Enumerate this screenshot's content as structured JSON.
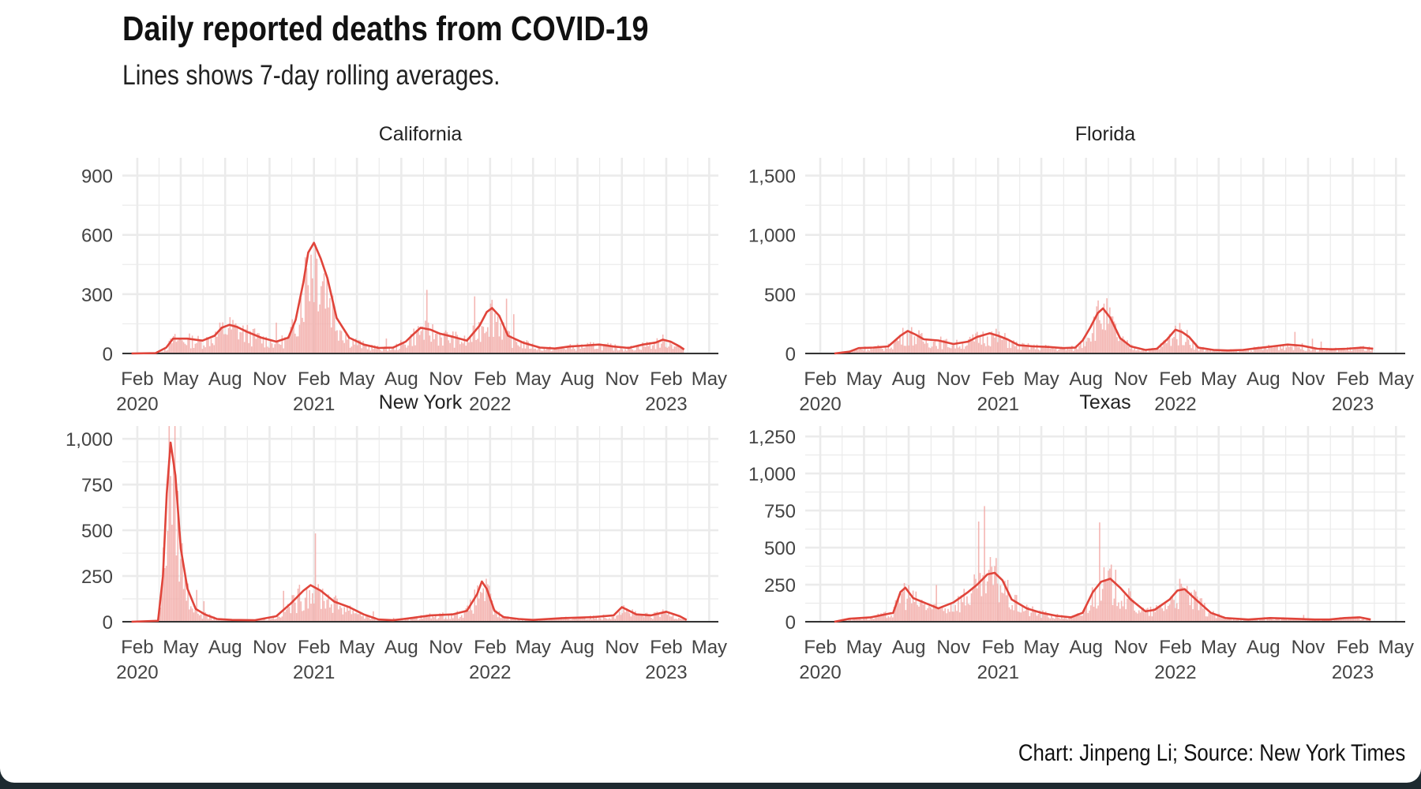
{
  "title": "Daily reported deaths from COVID-19",
  "subtitle": "Lines shows 7-day rolling averages.",
  "caption": "Chart: Jinpeng Li; Source: New York Times",
  "colors": {
    "line": "#e0443a",
    "bars": "#f2a9a6",
    "grid": "#ebebeb",
    "axis": "#333333",
    "text": "#444444"
  },
  "chart_data": [
    {
      "panel": "California",
      "type": "line",
      "ylim": [
        0,
        990
      ],
      "yticks": [
        0,
        300,
        600,
        900
      ],
      "ytick_labels": [
        "0",
        "300",
        "600",
        "900"
      ],
      "xlim": [
        "2020-01-01",
        "2023-05-20"
      ],
      "xticks": [
        "2020-02-01",
        "2020-05-01",
        "2020-08-01",
        "2020-11-01",
        "2021-02-01",
        "2021-05-01",
        "2021-08-01",
        "2021-11-01",
        "2022-02-01",
        "2022-05-01",
        "2022-08-01",
        "2022-11-01",
        "2023-02-01",
        "2023-05-01"
      ],
      "xtick_labels": [
        [
          "Feb",
          "2020"
        ],
        [
          "May",
          ""
        ],
        [
          "Aug",
          ""
        ],
        [
          "Nov",
          ""
        ],
        [
          "Feb",
          "2021"
        ],
        [
          "May",
          ""
        ],
        [
          "Aug",
          ""
        ],
        [
          "Nov",
          ""
        ],
        [
          "Feb",
          "2022"
        ],
        [
          "May",
          ""
        ],
        [
          "Aug",
          ""
        ],
        [
          "Nov",
          ""
        ],
        [
          "Feb",
          "2023"
        ],
        [
          "May",
          ""
        ]
      ],
      "series": [
        {
          "x": [
            "2020-01-20",
            "2020-03-10",
            "2020-04-01",
            "2020-04-15",
            "2020-05-15",
            "2020-06-15",
            "2020-07-10",
            "2020-07-25",
            "2020-08-10",
            "2020-08-25",
            "2020-09-15",
            "2020-10-15",
            "2020-11-15",
            "2020-12-10",
            "2020-12-25",
            "2021-01-10",
            "2021-01-20",
            "2021-02-01",
            "2021-02-15",
            "2021-03-01",
            "2021-03-20",
            "2021-04-15",
            "2021-05-15",
            "2021-06-15",
            "2021-07-15",
            "2021-08-10",
            "2021-08-25",
            "2021-09-10",
            "2021-10-01",
            "2021-10-20",
            "2021-11-15",
            "2021-12-15",
            "2022-01-10",
            "2022-01-25",
            "2022-02-05",
            "2022-02-20",
            "2022-03-10",
            "2022-04-10",
            "2022-05-15",
            "2022-06-15",
            "2022-07-15",
            "2022-08-15",
            "2022-09-15",
            "2022-10-15",
            "2022-11-15",
            "2022-12-15",
            "2023-01-10",
            "2023-01-25",
            "2023-02-10",
            "2023-03-01",
            "2023-03-10"
          ],
          "y": [
            0,
            2,
            30,
            75,
            75,
            65,
            90,
            130,
            145,
            135,
            110,
            80,
            60,
            80,
            170,
            360,
            510,
            560,
            480,
            380,
            180,
            80,
            45,
            28,
            30,
            60,
            95,
            130,
            120,
            100,
            85,
            65,
            140,
            210,
            230,
            190,
            90,
            55,
            30,
            25,
            35,
            40,
            45,
            35,
            28,
            45,
            55,
            70,
            60,
            35,
            20
          ]
        }
      ]
    },
    {
      "panel": "Florida",
      "type": "line",
      "ylim": [
        0,
        1650
      ],
      "yticks": [
        0,
        500,
        1000,
        1500
      ],
      "ytick_labels": [
        "0",
        "500",
        "1,000",
        "1,500"
      ],
      "xlim": [
        "2020-01-01",
        "2023-05-20"
      ],
      "xticks": [
        "2020-02-01",
        "2020-05-01",
        "2020-08-01",
        "2020-11-01",
        "2021-02-01",
        "2021-05-01",
        "2021-08-01",
        "2021-11-01",
        "2022-02-01",
        "2022-05-01",
        "2022-08-01",
        "2022-11-01",
        "2023-02-01",
        "2023-05-01"
      ],
      "xtick_labels": [
        [
          "Feb",
          "2020"
        ],
        [
          "May",
          ""
        ],
        [
          "Aug",
          ""
        ],
        [
          "Nov",
          ""
        ],
        [
          "Feb",
          "2021"
        ],
        [
          "May",
          ""
        ],
        [
          "Aug",
          ""
        ],
        [
          "Nov",
          ""
        ],
        [
          "Feb",
          "2022"
        ],
        [
          "May",
          ""
        ],
        [
          "Aug",
          ""
        ],
        [
          "Nov",
          ""
        ],
        [
          "Feb",
          "2023"
        ],
        [
          "May",
          ""
        ]
      ],
      "series": [
        {
          "x": [
            "2020-03-01",
            "2020-04-01",
            "2020-04-20",
            "2020-05-20",
            "2020-06-20",
            "2020-07-15",
            "2020-07-30",
            "2020-08-15",
            "2020-09-01",
            "2020-10-01",
            "2020-11-01",
            "2020-12-01",
            "2020-12-20",
            "2021-01-15",
            "2021-02-01",
            "2021-02-20",
            "2021-03-15",
            "2021-04-15",
            "2021-05-15",
            "2021-06-15",
            "2021-07-10",
            "2021-07-25",
            "2021-08-10",
            "2021-08-25",
            "2021-09-05",
            "2021-09-20",
            "2021-10-10",
            "2021-11-01",
            "2021-12-01",
            "2021-12-25",
            "2022-01-15",
            "2022-02-01",
            "2022-02-15",
            "2022-03-01",
            "2022-03-20",
            "2022-04-20",
            "2022-05-20",
            "2022-06-20",
            "2022-07-20",
            "2022-08-20",
            "2022-09-20",
            "2022-10-20",
            "2022-11-20",
            "2022-12-20",
            "2023-01-20",
            "2023-02-20",
            "2023-03-15"
          ],
          "y": [
            0,
            15,
            45,
            50,
            60,
            150,
            190,
            160,
            120,
            110,
            80,
            100,
            140,
            170,
            150,
            120,
            70,
            60,
            55,
            45,
            50,
            110,
            220,
            340,
            380,
            300,
            130,
            60,
            30,
            40,
            120,
            200,
            180,
            140,
            50,
            30,
            25,
            30,
            45,
            60,
            75,
            65,
            40,
            35,
            40,
            50,
            40
          ]
        }
      ]
    },
    {
      "panel": "New York",
      "type": "line",
      "ylim": [
        0,
        1070
      ],
      "yticks": [
        0,
        250,
        500,
        750,
        1000
      ],
      "ytick_labels": [
        "0",
        "250",
        "500",
        "750",
        "1,000"
      ],
      "xlim": [
        "2020-01-01",
        "2023-05-20"
      ],
      "xticks": [
        "2020-02-01",
        "2020-05-01",
        "2020-08-01",
        "2020-11-01",
        "2021-02-01",
        "2021-05-01",
        "2021-08-01",
        "2021-11-01",
        "2022-02-01",
        "2022-05-01",
        "2022-08-01",
        "2022-11-01",
        "2023-02-01",
        "2023-05-01"
      ],
      "xtick_labels": [
        [
          "Feb",
          "2020"
        ],
        [
          "May",
          ""
        ],
        [
          "Aug",
          ""
        ],
        [
          "Nov",
          ""
        ],
        [
          "Feb",
          "2021"
        ],
        [
          "May",
          ""
        ],
        [
          "Aug",
          ""
        ],
        [
          "Nov",
          ""
        ],
        [
          "Feb",
          "2022"
        ],
        [
          "May",
          ""
        ],
        [
          "Aug",
          ""
        ],
        [
          "Nov",
          ""
        ],
        [
          "Feb",
          "2023"
        ],
        [
          "May",
          ""
        ]
      ],
      "series": [
        {
          "x": [
            "2020-01-20",
            "2020-03-15",
            "2020-03-25",
            "2020-04-02",
            "2020-04-10",
            "2020-04-20",
            "2020-05-01",
            "2020-05-15",
            "2020-06-01",
            "2020-06-20",
            "2020-07-15",
            "2020-08-15",
            "2020-10-01",
            "2020-11-15",
            "2020-12-15",
            "2021-01-10",
            "2021-01-25",
            "2021-02-15",
            "2021-03-15",
            "2021-04-15",
            "2021-05-15",
            "2021-06-15",
            "2021-07-15",
            "2021-08-20",
            "2021-10-01",
            "2021-11-15",
            "2021-12-15",
            "2022-01-05",
            "2022-01-15",
            "2022-01-25",
            "2022-02-10",
            "2022-03-01",
            "2022-04-01",
            "2022-05-01",
            "2022-07-01",
            "2022-09-01",
            "2022-10-15",
            "2022-11-01",
            "2022-12-01",
            "2023-01-01",
            "2023-02-01",
            "2023-03-01",
            "2023-03-15"
          ],
          "y": [
            0,
            5,
            250,
            700,
            980,
            800,
            400,
            180,
            70,
            40,
            15,
            10,
            8,
            30,
            100,
            170,
            200,
            170,
            110,
            80,
            40,
            12,
            8,
            20,
            35,
            40,
            60,
            150,
            220,
            180,
            60,
            25,
            15,
            10,
            20,
            25,
            35,
            80,
            40,
            35,
            55,
            30,
            10
          ]
        }
      ]
    },
    {
      "panel": "Texas",
      "type": "line",
      "ylim": [
        0,
        1320
      ],
      "yticks": [
        0,
        250,
        500,
        750,
        1000,
        1250
      ],
      "ytick_labels": [
        "0",
        "250",
        "500",
        "750",
        "1,000",
        "1,250"
      ],
      "xlim": [
        "2020-01-01",
        "2023-05-20"
      ],
      "xticks": [
        "2020-02-01",
        "2020-05-01",
        "2020-08-01",
        "2020-11-01",
        "2021-02-01",
        "2021-05-01",
        "2021-08-01",
        "2021-11-01",
        "2022-02-01",
        "2022-05-01",
        "2022-08-01",
        "2022-11-01",
        "2023-02-01",
        "2023-05-01"
      ],
      "xtick_labels": [
        [
          "Feb",
          "2020"
        ],
        [
          "May",
          ""
        ],
        [
          "Aug",
          ""
        ],
        [
          "Nov",
          ""
        ],
        [
          "Feb",
          "2021"
        ],
        [
          "May",
          ""
        ],
        [
          "Aug",
          ""
        ],
        [
          "Nov",
          ""
        ],
        [
          "Feb",
          "2022"
        ],
        [
          "May",
          ""
        ],
        [
          "Aug",
          ""
        ],
        [
          "Nov",
          ""
        ],
        [
          "Feb",
          "2023"
        ],
        [
          "May",
          ""
        ]
      ],
      "series": [
        {
          "x": [
            "2020-03-01",
            "2020-04-01",
            "2020-05-15",
            "2020-06-30",
            "2020-07-15",
            "2020-07-25",
            "2020-08-10",
            "2020-09-01",
            "2020-10-01",
            "2020-11-01",
            "2020-12-01",
            "2020-12-20",
            "2021-01-10",
            "2021-01-25",
            "2021-02-10",
            "2021-03-01",
            "2021-04-01",
            "2021-05-01",
            "2021-06-01",
            "2021-07-01",
            "2021-07-25",
            "2021-08-15",
            "2021-09-01",
            "2021-09-20",
            "2021-10-10",
            "2021-11-01",
            "2021-12-01",
            "2021-12-20",
            "2022-01-20",
            "2022-02-05",
            "2022-02-20",
            "2022-03-15",
            "2022-04-15",
            "2022-05-15",
            "2022-07-01",
            "2022-08-15",
            "2022-10-01",
            "2022-11-15",
            "2022-12-15",
            "2023-01-15",
            "2023-02-15",
            "2023-03-10"
          ],
          "y": [
            0,
            20,
            30,
            60,
            200,
            230,
            160,
            130,
            90,
            130,
            200,
            250,
            320,
            330,
            280,
            150,
            90,
            60,
            40,
            30,
            60,
            200,
            270,
            290,
            230,
            150,
            70,
            80,
            150,
            210,
            220,
            150,
            60,
            25,
            15,
            25,
            20,
            15,
            15,
            25,
            30,
            15
          ]
        }
      ]
    }
  ]
}
